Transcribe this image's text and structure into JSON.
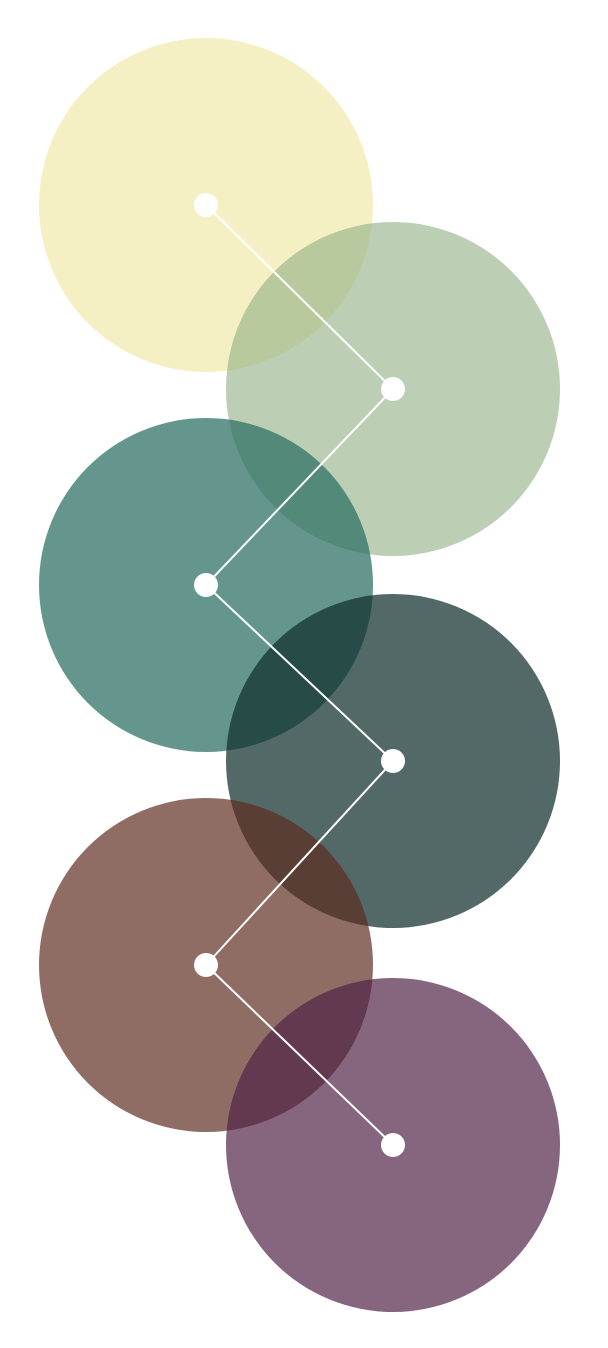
{
  "diagram": {
    "nodes": [
      {
        "id": "node-1",
        "color": "#efe6a0",
        "opacity": 0.62
      },
      {
        "id": "node-2",
        "color": "#90af83",
        "opacity": 0.6
      },
      {
        "id": "node-3",
        "color": "#2c6f63",
        "opacity": 0.73
      },
      {
        "id": "node-4",
        "color": "#0f2f2d",
        "opacity": 0.72
      },
      {
        "id": "node-5",
        "color": "#5d2b20",
        "opacity": 0.69
      },
      {
        "id": "node-6",
        "color": "#4f2245",
        "opacity": 0.69
      }
    ],
    "connector_color": "#ffffff",
    "dot_color": "#ffffff"
  }
}
